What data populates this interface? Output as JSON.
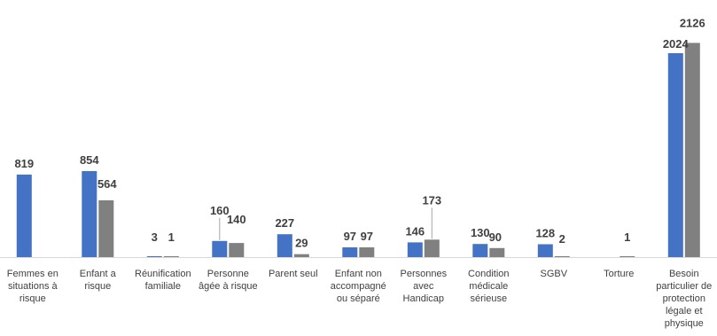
{
  "chart_data": {
    "type": "bar",
    "title": "",
    "xlabel": "",
    "ylabel": "",
    "ylim": [
      0,
      2200
    ],
    "grid": false,
    "legend": "none",
    "categories": [
      "Femmes en situations à risque",
      "Enfant a risque",
      "Réunification familiale",
      "Personne âgée à risque",
      "Parent seul",
      "Enfant non accompagné ou séparé",
      "Personnes avec Handicap",
      "Condition médicale sérieuse",
      "SGBV",
      "Torture",
      "Besoin particulier de protection légale et physique"
    ],
    "category_lines": [
      [
        "Femmes en",
        "situations à",
        "risque"
      ],
      [
        "Enfant a",
        "risque"
      ],
      [
        "Réunification",
        "familiale"
      ],
      [
        "Personne",
        "âgée à risque"
      ],
      [
        "Parent seul"
      ],
      [
        "Enfant non",
        "accompagné",
        "ou séparé"
      ],
      [
        "Personnes",
        "avec",
        "Handicap"
      ],
      [
        "Condition",
        "médicale",
        "sérieuse"
      ],
      [
        "SGBV"
      ],
      [
        "Torture"
      ],
      [
        "Besoin",
        "particulier de",
        "protection",
        "légale et",
        "physique"
      ]
    ],
    "series": [
      {
        "values": [
          819,
          854,
          3,
          160,
          227,
          97,
          146,
          130,
          128,
          null,
          2024
        ],
        "color": "#4472C4"
      },
      {
        "values": [
          null,
          564,
          1,
          140,
          29,
          97,
          173,
          90,
          2,
          1,
          2126
        ],
        "color": "#808080"
      }
    ],
    "data_labels": [
      [
        "819",
        "854",
        "3",
        "160",
        "227",
        "97",
        "146",
        "130",
        "128",
        "",
        "2024"
      ],
      [
        "",
        "564",
        "1",
        "140",
        "29",
        "97",
        "173",
        "90",
        "2",
        "1",
        "2126"
      ]
    ]
  }
}
